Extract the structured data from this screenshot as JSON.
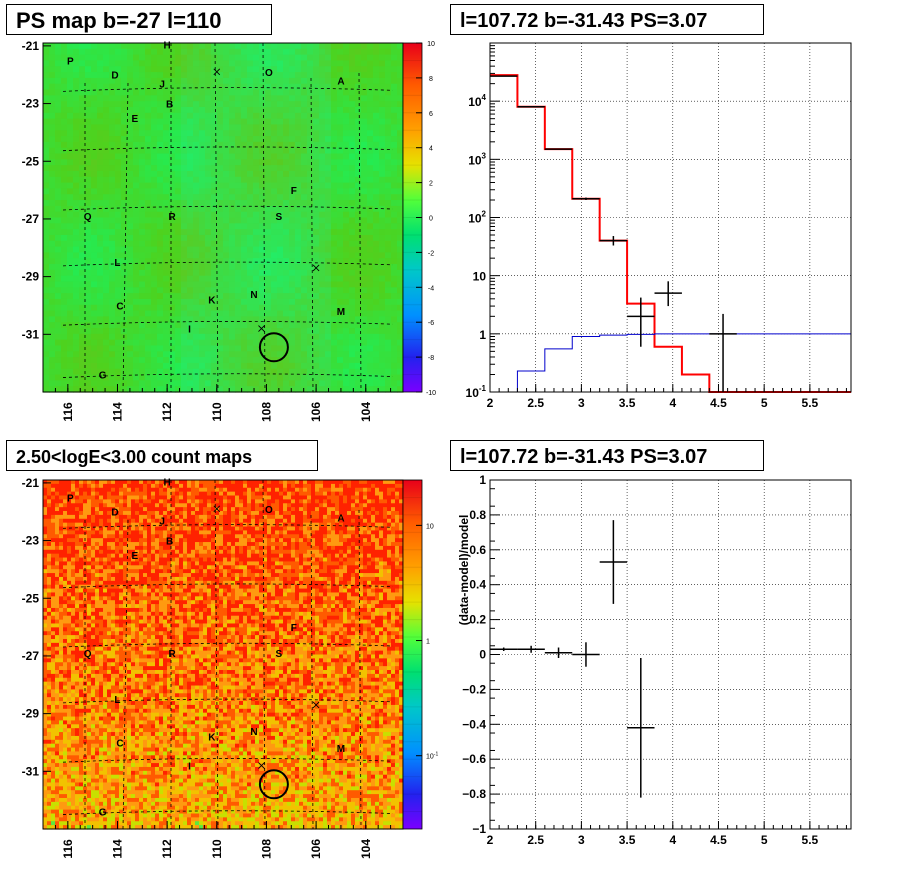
{
  "chart_data": [
    {
      "type": "heatmap",
      "title": "PS map b=-27 l=110",
      "xlim": [
        117,
        102.5
      ],
      "ylim": [
        -33,
        -20.9
      ],
      "x_ticks": [
        "116",
        "114",
        "112",
        "110",
        "108",
        "106",
        "104"
      ],
      "y_ticks": [
        "-21",
        "-23",
        "-25",
        "-27",
        "-29",
        "-31"
      ],
      "colorbar": {
        "range": [
          -10,
          10
        ],
        "ticks": [
          "10",
          "8",
          "6",
          "4",
          "2",
          "0",
          "-2",
          "-4",
          "-6",
          "-8",
          "-10"
        ]
      },
      "labels": [
        {
          "text": "P",
          "x": 115.9,
          "y": -21.5
        },
        {
          "text": "H",
          "x": 112.0,
          "y": -20.95
        },
        {
          "text": "D",
          "x": 114.1,
          "y": -22.0
        },
        {
          "text": "O",
          "x": 107.9,
          "y": -21.9
        },
        {
          "text": "A",
          "x": 105.0,
          "y": -22.2
        },
        {
          "text": "J",
          "x": 112.2,
          "y": -22.3
        },
        {
          "text": "B",
          "x": 111.9,
          "y": -23.0
        },
        {
          "text": "E",
          "x": 113.3,
          "y": -23.5
        },
        {
          "text": "F",
          "x": 106.9,
          "y": -26.0
        },
        {
          "text": "Q",
          "x": 115.2,
          "y": -26.9
        },
        {
          "text": "R",
          "x": 111.8,
          "y": -26.9
        },
        {
          "text": "S",
          "x": 107.5,
          "y": -26.9
        },
        {
          "text": "L",
          "x": 114.0,
          "y": -28.5
        },
        {
          "text": "K",
          "x": 110.2,
          "y": -29.8
        },
        {
          "text": "N",
          "x": 108.5,
          "y": -29.6
        },
        {
          "text": "C",
          "x": 113.9,
          "y": -30.0
        },
        {
          "text": "M",
          "x": 105.0,
          "y": -30.2
        },
        {
          "text": "I",
          "x": 111.1,
          "y": -30.8
        },
        {
          "text": "G",
          "x": 114.6,
          "y": -32.4
        }
      ],
      "markers": [
        {
          "kind": "x",
          "x": 110.0,
          "y": -21.9
        },
        {
          "kind": "x",
          "x": 106.0,
          "y": -28.7
        },
        {
          "kind": "x",
          "x": 108.2,
          "y": -30.8
        },
        {
          "kind": "circle",
          "x": 107.7,
          "y": -31.45
        }
      ]
    },
    {
      "type": "line",
      "title": "l=107.72 b=-31.43 PS=3.07",
      "xlim": [
        2,
        5.95
      ],
      "ylim": [
        0.1,
        100000
      ],
      "yscale": "log",
      "x_ticks": [
        "2",
        "2.5",
        "3",
        "3.5",
        "4",
        "4.5",
        "5",
        "5.5"
      ],
      "y_ticks": [
        "10^4",
        "10^3",
        "10^2",
        "10",
        "1",
        "10^-1"
      ],
      "grid": true,
      "series": [
        {
          "kind": "step",
          "color": "#ff0000",
          "edges": [
            2,
            2.3,
            2.6,
            2.9,
            3.2,
            3.5,
            3.8,
            4.1,
            4.4,
            5.95
          ],
          "values": [
            28000,
            8000,
            1500,
            210,
            40,
            3.3,
            0.6,
            0.2,
            0.1
          ]
        },
        {
          "kind": "step",
          "color": "#0000cc",
          "edges": [
            2,
            2.3,
            2.6,
            2.9,
            3.2,
            3.5,
            3.8,
            4.1,
            4.4,
            5.95
          ],
          "values": [
            0.1,
            0.23,
            0.55,
            0.9,
            0.95,
            0.98,
            1.0,
            1.0,
            1.0
          ]
        },
        {
          "kind": "points",
          "color": "#000000",
          "points": [
            {
              "x": 2.15,
              "y": 27000,
              "xerr": 0.15,
              "ylo": 27000,
              "yhi": 27000
            },
            {
              "x": 2.45,
              "y": 8000,
              "xerr": 0.15,
              "ylo": 8000,
              "yhi": 8000
            },
            {
              "x": 2.75,
              "y": 1500,
              "xerr": 0.15,
              "ylo": 1500,
              "yhi": 1500
            },
            {
              "x": 3.05,
              "y": 210,
              "xerr": 0.15,
              "ylo": 200,
              "yhi": 220
            },
            {
              "x": 3.35,
              "y": 40,
              "xerr": 0.15,
              "ylo": 33,
              "yhi": 48
            },
            {
              "x": 3.65,
              "y": 2.0,
              "xerr": 0.15,
              "ylo": 0.6,
              "yhi": 4.2
            },
            {
              "x": 3.95,
              "y": 5.0,
              "xerr": 0.15,
              "ylo": 3.0,
              "yhi": 8.0
            },
            {
              "x": 4.55,
              "y": 1.0,
              "xerr": 0.15,
              "ylo": 0.1,
              "yhi": 2.2
            }
          ]
        }
      ]
    },
    {
      "type": "heatmap",
      "title": "2.50<logE<3.00 count maps",
      "xlim": [
        117,
        102.5
      ],
      "ylim": [
        -33,
        -20.9
      ],
      "x_ticks": [
        "116",
        "114",
        "112",
        "110",
        "108",
        "106",
        "104"
      ],
      "y_ticks": [
        "-21",
        "-23",
        "-25",
        "-27",
        "-29",
        "-31"
      ],
      "colorbar": {
        "scale": "log",
        "ticks": [
          "10",
          "1",
          "10^-1"
        ]
      },
      "labels": "same as PS map",
      "markers": "same as PS map"
    },
    {
      "type": "scatter",
      "title": "l=107.72 b=-31.43 PS=3.07",
      "ylabel": "(data-model)/model",
      "xlim": [
        2,
        5.95
      ],
      "ylim": [
        -1,
        1
      ],
      "x_ticks": [
        "2",
        "2.5",
        "3",
        "3.5",
        "4",
        "4.5",
        "5",
        "5.5"
      ],
      "y_ticks": [
        "1",
        "0.8",
        "0.6",
        "0.4",
        "0.2",
        "0",
        "-0.2",
        "-0.4",
        "-0.6",
        "-0.8",
        "-1"
      ],
      "grid": true,
      "points": [
        {
          "x": 2.15,
          "y": 0.03,
          "xerr": 0.15,
          "yerr": 0.01
        },
        {
          "x": 2.45,
          "y": 0.03,
          "xerr": 0.15,
          "yerr": 0.02
        },
        {
          "x": 2.75,
          "y": 0.01,
          "xerr": 0.15,
          "yerr": 0.03
        },
        {
          "x": 3.05,
          "y": 0.0,
          "xerr": 0.15,
          "yerr": 0.07
        },
        {
          "x": 3.35,
          "y": 0.53,
          "xerr": 0.15,
          "yerr": 0.24
        },
        {
          "x": 3.65,
          "y": -0.42,
          "xerr": 0.15,
          "yerr": 0.4
        }
      ]
    }
  ]
}
